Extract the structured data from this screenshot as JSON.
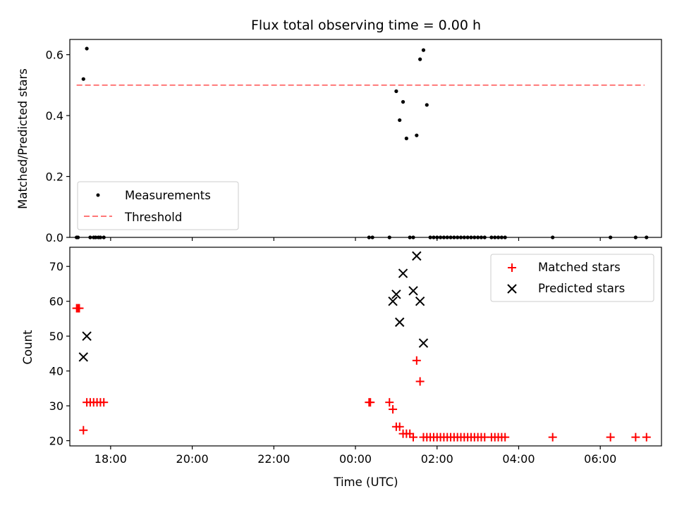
{
  "chart_data": [
    {
      "type": "scatter",
      "title": "Flux total observing time = 0.00 h",
      "xlabel": "",
      "ylabel": "Matched/Predicted stars",
      "xlim": [
        "17:00",
        "07:30"
      ],
      "ylim": [
        0,
        0.65
      ],
      "yticks": [
        0.0,
        0.2,
        0.4,
        0.6
      ],
      "ytick_labels": [
        "0.0",
        "0.2",
        "0.4",
        "0.6"
      ],
      "legend_position": "lower-left",
      "series": [
        {
          "name": "Measurements",
          "marker": "dot",
          "color": "#000000",
          "x": [
            "17:10",
            "17:12",
            "17:20",
            "17:25",
            "17:30",
            "17:35",
            "17:38",
            "17:42",
            "17:45",
            "17:50",
            "00:20",
            "00:25",
            "00:50",
            "01:00",
            "01:05",
            "01:10",
            "01:15",
            "01:20",
            "01:25",
            "01:30",
            "01:35",
            "01:40",
            "01:45",
            "01:50",
            "01:55",
            "02:00",
            "02:05",
            "02:10",
            "02:15",
            "02:20",
            "02:25",
            "02:30",
            "02:35",
            "02:40",
            "02:45",
            "02:50",
            "02:55",
            "03:00",
            "03:05",
            "03:10",
            "03:20",
            "03:25",
            "03:30",
            "03:35",
            "03:40",
            "04:50",
            "06:15",
            "06:52",
            "07:08"
          ],
          "y": [
            0,
            0,
            0.52,
            0.62,
            0,
            0,
            0,
            0,
            0,
            0,
            0,
            0,
            0,
            0.48,
            0.385,
            0.445,
            0.325,
            0,
            0,
            0.335,
            0.585,
            0.615,
            0.435,
            0,
            0,
            0,
            0,
            0,
            0,
            0,
            0,
            0,
            0,
            0,
            0,
            0,
            0,
            0,
            0,
            0,
            0,
            0,
            0,
            0,
            0,
            0,
            0,
            0,
            0
          ]
        },
        {
          "name": "Threshold",
          "line_style": "dashed",
          "color": "#ff7777",
          "x": [
            "17:10",
            "07:05"
          ],
          "y": [
            0.5,
            0.5
          ]
        }
      ]
    },
    {
      "type": "scatter",
      "title": "",
      "xlabel": "Time (UTC)",
      "ylabel": "Count",
      "xlim": [
        "17:00",
        "07:30"
      ],
      "ylim": [
        18.5,
        75.5
      ],
      "yticks": [
        20,
        30,
        40,
        50,
        60,
        70
      ],
      "ytick_labels": [
        "20",
        "30",
        "40",
        "50",
        "60",
        "70"
      ],
      "xticks": [
        "18:00",
        "20:00",
        "22:00",
        "00:00",
        "02:00",
        "04:00",
        "06:00"
      ],
      "legend_position": "top-right",
      "series": [
        {
          "name": "Matched stars",
          "marker": "plus",
          "color": "#ff0000",
          "x": [
            "17:10",
            "17:12",
            "17:14",
            "17:20",
            "17:25",
            "17:30",
            "17:35",
            "17:40",
            "17:45",
            "17:50",
            "00:20",
            "00:22",
            "00:50",
            "00:55",
            "01:00",
            "01:05",
            "01:10",
            "01:15",
            "01:20",
            "01:25",
            "01:30",
            "01:35",
            "01:40",
            "01:45",
            "01:50",
            "01:55",
            "02:00",
            "02:05",
            "02:10",
            "02:15",
            "02:20",
            "02:25",
            "02:30",
            "02:35",
            "02:40",
            "02:45",
            "02:50",
            "02:55",
            "03:00",
            "03:05",
            "03:10",
            "03:20",
            "03:25",
            "03:30",
            "03:35",
            "03:40",
            "04:50",
            "06:15",
            "06:52",
            "07:08"
          ],
          "y": [
            58,
            58,
            58,
            23,
            31,
            31,
            31,
            31,
            31,
            31,
            31,
            31,
            31,
            29,
            24,
            24,
            22,
            22,
            22,
            21,
            43,
            37,
            21,
            21,
            21,
            21,
            21,
            21,
            21,
            21,
            21,
            21,
            21,
            21,
            21,
            21,
            21,
            21,
            21,
            21,
            21,
            21,
            21,
            21,
            21,
            21,
            21,
            21,
            21,
            21
          ]
        },
        {
          "name": "Predicted stars",
          "marker": "x",
          "color": "#000000",
          "x": [
            "17:20",
            "17:25",
            "00:55",
            "01:00",
            "01:05",
            "01:10",
            "01:25",
            "01:30",
            "01:35",
            "01:40"
          ],
          "y": [
            44,
            50,
            60,
            62,
            54,
            68,
            63,
            73,
            60,
            48
          ]
        }
      ]
    }
  ]
}
